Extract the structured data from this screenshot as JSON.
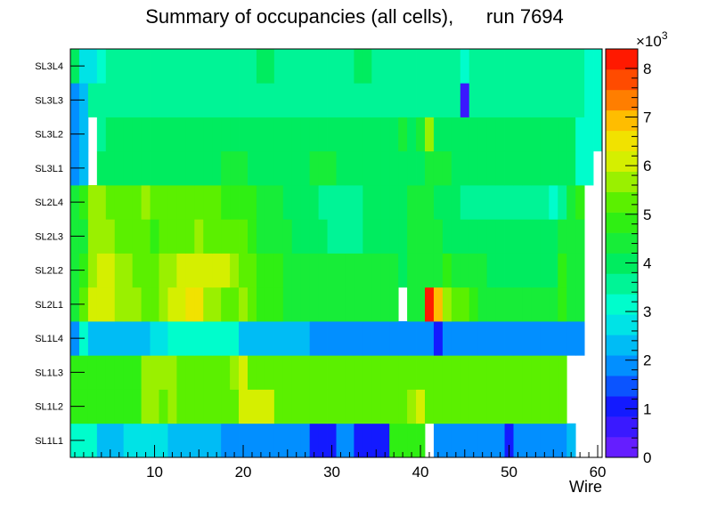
{
  "title_main": "Summary of occupancies (all cells),",
  "title_run": "run 7694",
  "chart_data": {
    "type": "heatmap",
    "title": "Summary of occupancies (all cells),      run 7694",
    "xlabel": "Wire",
    "ylabel": "",
    "xlim": [
      0.5,
      60.5
    ],
    "x_ticks": [
      10,
      20,
      30,
      40,
      50,
      60
    ],
    "y_categories": [
      "SL1L1",
      "SL1L2",
      "SL1L3",
      "SL1L4",
      "SL2L1",
      "SL2L2",
      "SL2L3",
      "SL2L4",
      "SL3L1",
      "SL3L2",
      "SL3L3",
      "SL3L4"
    ],
    "zlim": [
      0,
      8400
    ],
    "z_ticks": [
      0,
      1,
      2,
      3,
      4,
      5,
      6,
      7,
      8
    ],
    "z_multiplier_label": "×10",
    "z_multiplier_exp": "3",
    "rows": {
      "SL3L4": [
        4000,
        2600,
        2600,
        3000,
        3400,
        3600,
        3600,
        3600,
        3600,
        3600,
        3600,
        3600,
        3600,
        3600,
        3600,
        3600,
        3600,
        3600,
        3600,
        3600,
        3600,
        3800,
        3800,
        3600,
        3600,
        3600,
        3600,
        3600,
        3600,
        3600,
        3600,
        3600,
        3800,
        3800,
        3600,
        3600,
        3600,
        3600,
        3600,
        3600,
        3600,
        3600,
        3600,
        3600,
        3000,
        3600,
        3600,
        3600,
        3600,
        3600,
        3600,
        3600,
        3600,
        3600,
        3600,
        3600,
        3600,
        3400,
        3000,
        3000
      ],
      "SL3L3": [
        2000,
        2400,
        3600,
        3600,
        3600,
        3600,
        3600,
        3600,
        3600,
        3600,
        3600,
        3600,
        3600,
        3600,
        3600,
        3600,
        3600,
        3600,
        3600,
        3600,
        3600,
        3600,
        3600,
        3600,
        3600,
        3600,
        3600,
        3600,
        3600,
        3600,
        3600,
        3600,
        3600,
        3600,
        3600,
        3600,
        3600,
        3600,
        3600,
        3600,
        3600,
        3600,
        3600,
        3600,
        600,
        3600,
        3600,
        3600,
        3600,
        3600,
        3600,
        3600,
        3600,
        3600,
        3600,
        3600,
        3600,
        3600,
        3000,
        3000
      ],
      "SL3L2": [
        1800,
        2200,
        null,
        3400,
        3800,
        3800,
        3800,
        3800,
        3800,
        3800,
        3800,
        3800,
        3800,
        3800,
        3800,
        3800,
        3800,
        3800,
        4000,
        3800,
        3800,
        3800,
        3800,
        3800,
        3800,
        3800,
        3800,
        3800,
        3800,
        3800,
        3800,
        3800,
        3800,
        3800,
        3800,
        3800,
        3800,
        4200,
        3800,
        4200,
        5800,
        3800,
        4000,
        3800,
        3800,
        3800,
        3800,
        3800,
        3800,
        3800,
        3800,
        3800,
        3800,
        3800,
        3800,
        3800,
        3800,
        3200,
        3000,
        3000
      ],
      "SL3L1": [
        1800,
        2200,
        null,
        3800,
        4000,
        4000,
        4000,
        4000,
        4000,
        4000,
        4000,
        4000,
        4000,
        4000,
        4000,
        4000,
        4000,
        4400,
        4400,
        4400,
        4000,
        4000,
        4000,
        4000,
        4000,
        4000,
        4000,
        4400,
        4400,
        4400,
        4000,
        4000,
        4000,
        4000,
        4000,
        4000,
        4000,
        4000,
        4000,
        4000,
        4400,
        4400,
        4400,
        4000,
        4000,
        4000,
        4000,
        4000,
        4000,
        4000,
        4000,
        4000,
        4000,
        4000,
        4000,
        4000,
        4000,
        3200,
        3000,
        null
      ],
      "SL2L4": [
        4400,
        5000,
        5800,
        5800,
        5400,
        5400,
        5400,
        5400,
        5800,
        5400,
        5400,
        5400,
        5400,
        5400,
        5400,
        5400,
        5400,
        5000,
        5000,
        5000,
        5000,
        4400,
        4400,
        4400,
        4000,
        4000,
        3800,
        3800,
        3600,
        3600,
        3600,
        3600,
        3600,
        3800,
        3800,
        4000,
        4000,
        4000,
        4200,
        4200,
        4200,
        4000,
        4000,
        4000,
        3400,
        3400,
        3400,
        3400,
        3400,
        3400,
        3400,
        3400,
        3400,
        3400,
        3000,
        3600,
        4200,
        4800,
        null,
        null
      ],
      "SL2L3": [
        4200,
        4600,
        5800,
        5800,
        5800,
        5400,
        5400,
        5400,
        5400,
        5000,
        5400,
        5400,
        5400,
        5400,
        5600,
        5400,
        5400,
        5400,
        5400,
        5400,
        5000,
        4400,
        4400,
        4400,
        4400,
        4000,
        4000,
        3800,
        3800,
        3600,
        3600,
        3600,
        3600,
        3800,
        3800,
        4000,
        4000,
        4000,
        4200,
        4200,
        4200,
        4200,
        4000,
        3800,
        3800,
        3800,
        3800,
        3800,
        3800,
        3800,
        3800,
        3800,
        3800,
        3800,
        3800,
        4600,
        4600,
        4600,
        null,
        null
      ],
      "SL2L2": [
        4600,
        4800,
        5600,
        6200,
        6200,
        5600,
        5600,
        5400,
        5400,
        5400,
        5600,
        5800,
        6000,
        6000,
        6000,
        6000,
        6000,
        6000,
        5800,
        5400,
        5200,
        4800,
        4800,
        4800,
        4400,
        4400,
        4400,
        4400,
        4400,
        4400,
        4400,
        4400,
        4400,
        4400,
        4400,
        4400,
        4400,
        4000,
        4200,
        4400,
        4400,
        4600,
        4800,
        4200,
        4200,
        4400,
        4400,
        4000,
        4000,
        4000,
        4000,
        4000,
        4000,
        4000,
        4000,
        4800,
        4600,
        4600,
        null,
        null
      ],
      "SL2L1": [
        4400,
        5200,
        6200,
        6200,
        6200,
        5800,
        5800,
        5600,
        5400,
        5400,
        5600,
        6000,
        6000,
        6400,
        6400,
        5800,
        5800,
        5400,
        5200,
        5600,
        5400,
        4800,
        4800,
        4800,
        4400,
        4400,
        4400,
        4400,
        4400,
        4400,
        4400,
        4400,
        4400,
        4400,
        4400,
        4400,
        4400,
        null,
        4400,
        4400,
        8400,
        7000,
        5600,
        5400,
        5400,
        5000,
        4600,
        4600,
        4600,
        4600,
        4600,
        4600,
        4400,
        4400,
        4400,
        4800,
        4400,
        4400,
        null,
        null
      ],
      "SL1L4": [
        1800,
        3000,
        2200,
        2200,
        2200,
        2200,
        2400,
        2400,
        2400,
        2800,
        2800,
        3200,
        3200,
        3000,
        3000,
        3000,
        3000,
        3000,
        3000,
        2200,
        2200,
        2200,
        2200,
        2200,
        2200,
        2200,
        2200,
        1700,
        1700,
        1700,
        1700,
        1700,
        1700,
        1700,
        1700,
        1700,
        1700,
        1700,
        1700,
        1700,
        1700,
        1200,
        1700,
        1700,
        1700,
        1700,
        1700,
        1700,
        1700,
        1700,
        1700,
        1700,
        1700,
        1700,
        1700,
        1700,
        1700,
        1700,
        null,
        null
      ],
      "SL1L3": [
        4800,
        4800,
        5000,
        5000,
        5000,
        5000,
        5000,
        5000,
        5600,
        5600,
        5600,
        5600,
        5400,
        5400,
        5400,
        5400,
        5400,
        5400,
        5600,
        6000,
        5400,
        5400,
        5400,
        5400,
        5400,
        5400,
        5400,
        5400,
        5400,
        5400,
        5400,
        5400,
        5400,
        5400,
        5400,
        5400,
        5400,
        5400,
        5400,
        5400,
        5400,
        5400,
        5400,
        5400,
        5400,
        5400,
        5400,
        5400,
        5400,
        5400,
        5400,
        5400,
        5400,
        5400,
        5400,
        5400,
        null,
        null,
        null,
        null
      ],
      "SL1L2": [
        4800,
        4800,
        5000,
        5000,
        5000,
        5000,
        5000,
        5000,
        5600,
        5600,
        5400,
        5600,
        5400,
        5400,
        5400,
        5400,
        5400,
        5400,
        5400,
        6000,
        6000,
        6000,
        6000,
        5400,
        5400,
        5400,
        5400,
        5400,
        5400,
        5400,
        5400,
        5400,
        5400,
        5400,
        5400,
        5400,
        5400,
        5400,
        5800,
        6000,
        5400,
        5400,
        5400,
        5400,
        5400,
        5400,
        5400,
        5400,
        5400,
        5400,
        5400,
        5400,
        5400,
        5400,
        5400,
        5400,
        null,
        null,
        null,
        null
      ],
      "SL1L1": [
        3000,
        3000,
        3000,
        2400,
        2400,
        2400,
        2600,
        2600,
        2600,
        2600,
        2600,
        2400,
        2400,
        2400,
        2400,
        2400,
        2400,
        2000,
        2000,
        2000,
        2000,
        2000,
        2000,
        2000,
        2000,
        2000,
        1700,
        1200,
        1200,
        1200,
        1700,
        1700,
        1200,
        1200,
        1200,
        1200,
        4800,
        4800,
        4800,
        4800,
        null,
        1700,
        1700,
        1700,
        1700,
        1700,
        1700,
        1700,
        1700,
        1200,
        1700,
        1700,
        1700,
        1700,
        1700,
        1700,
        2200,
        null,
        null,
        null
      ]
    }
  }
}
